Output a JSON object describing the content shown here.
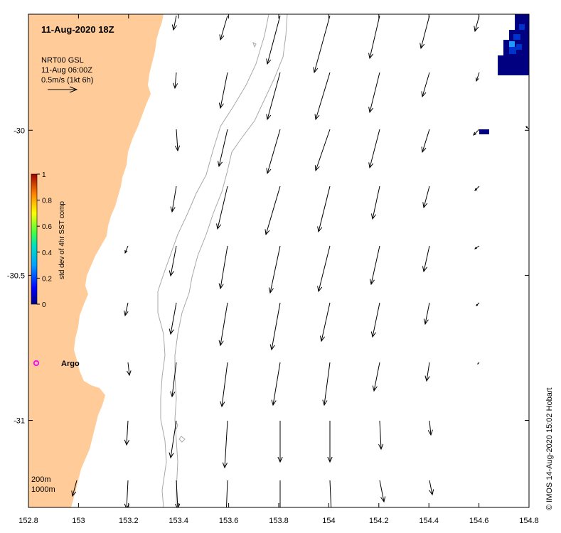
{
  "map": {
    "title": "11-Aug-2020 18Z",
    "legend": {
      "product": "NRT00 GSL",
      "time": "11-Aug 06:00Z",
      "scale": "0.5m/s (1kt 6h)"
    },
    "colorbar": {
      "label": "std dev of 4hr SST comp",
      "ticks": [
        "1",
        "0.8",
        "0.6",
        "0.4",
        "0.2",
        "0"
      ]
    },
    "argo_label": "Argo",
    "bathymetry_labels": [
      "200m",
      "1000m"
    ],
    "credit": "© IMOS 14-Aug-2020 15:02 Hobart",
    "x_axis": {
      "ticks": [
        "152.8",
        "153",
        "153.2",
        "153.4",
        "153.6",
        "153.8",
        "154",
        "154.2",
        "154.4",
        "154.6",
        "154.8"
      ],
      "range": [
        152.8,
        154.8
      ]
    },
    "y_axis": {
      "ticks": [
        "-30",
        "-30.5",
        "-31"
      ],
      "tick_values": [
        -30,
        -30.5,
        -31
      ],
      "range": [
        -31.3,
        -29.6
      ]
    },
    "colors": {
      "land": "#FFCC99",
      "isobath": "#a8a8a8",
      "argo": "#ff00ff",
      "sst_dark": "#000080",
      "sst_mid": "#0033cc",
      "sst_light": "#1f9bff"
    }
  }
}
